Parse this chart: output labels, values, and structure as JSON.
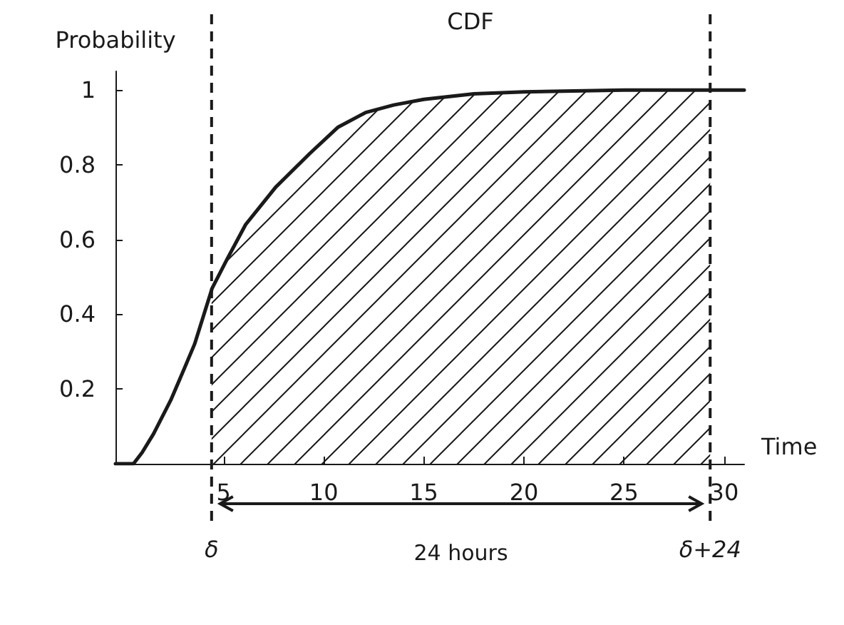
{
  "chart_data": {
    "type": "line",
    "title": "CDF",
    "xlabel": "Time",
    "ylabel": "Probability",
    "x": [
      -0.4,
      0.5,
      0.93,
      1.5,
      2.36,
      3.0,
      3.55,
      4.43,
      5.2,
      6.1,
      7.6,
      9.3,
      10.7,
      12.1,
      13.5,
      15,
      17.5,
      20,
      25,
      31
    ],
    "series": [
      {
        "color": "#1a1a1a",
        "values": [
          0,
          0,
          0.03,
          0.08,
          0.17,
          0.25,
          0.32,
          0.47,
          0.55,
          0.64,
          0.74,
          0.83,
          0.9,
          0.94,
          0.96,
          0.975,
          0.99,
          0.995,
          1,
          1
        ]
      }
    ],
    "xlim": [
      -0.4,
      31
    ],
    "ylim": [
      0,
      1.05
    ],
    "xticks": [
      5,
      10,
      15,
      20,
      25,
      30
    ],
    "yticks": [
      {
        "value": 0,
        "label": null
      },
      0.2,
      0.4,
      0.6,
      0.8,
      1
    ],
    "ref_lines": [
      {
        "axis": "x",
        "value": 4.4,
        "label": "δ",
        "line_style": "dashed"
      },
      {
        "axis": "x",
        "value": 29.3,
        "label": "δ+24",
        "line_style": "dashed"
      }
    ],
    "bands": [
      {
        "axis": "x",
        "from": 4.4,
        "to": 29.3
      }
    ],
    "annotations": [
      "24 hours"
    ],
    "grid": false,
    "marker": "none",
    "line_style": "solid"
  }
}
